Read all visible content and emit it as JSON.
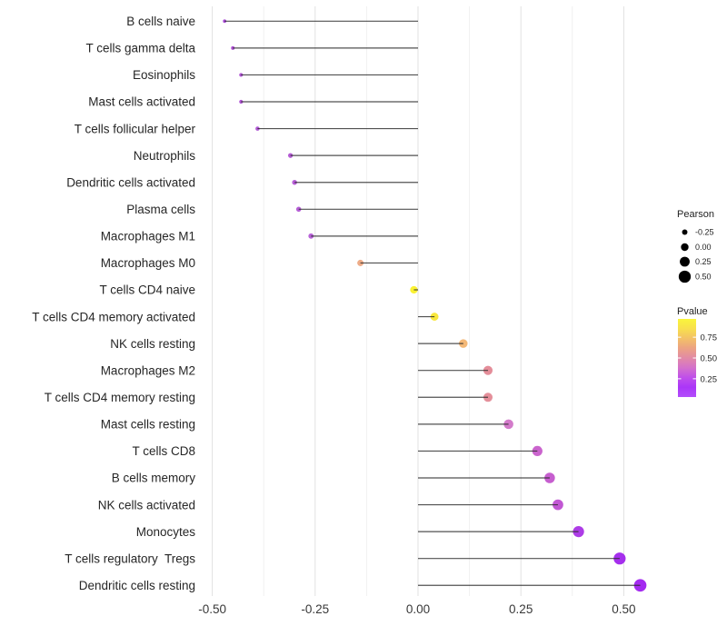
{
  "chart_data": {
    "type": "lollipop",
    "title": "",
    "xlabel": "",
    "ylabel": "",
    "x_tick_values": [
      -0.5,
      -0.25,
      0.0,
      0.25,
      0.5
    ],
    "x_tick_labels": [
      "-0.50",
      "-0.25",
      "0.00",
      "0.25",
      "0.50"
    ],
    "x_range": [
      -0.527,
      0.595
    ],
    "baseline": 0,
    "grid": "vertical-only",
    "rows": [
      {
        "label": "B cells naive",
        "pearson": -0.47,
        "color": "#A139D4"
      },
      {
        "label": "T cells gamma delta",
        "pearson": -0.45,
        "color": "#A841D1"
      },
      {
        "label": "Eosinophils",
        "pearson": -0.43,
        "color": "#A946D0"
      },
      {
        "label": "Mast cells activated",
        "pearson": -0.43,
        "color": "#A946D0"
      },
      {
        "label": "T cells follicular helper",
        "pearson": -0.39,
        "color": "#AB4BD2"
      },
      {
        "label": "Neutrophils",
        "pearson": -0.31,
        "color": "#B04FD2"
      },
      {
        "label": "Dendritic cells activated",
        "pearson": -0.3,
        "color": "#B04FD2"
      },
      {
        "label": "Plasma cells",
        "pearson": -0.29,
        "color": "#B051D3"
      },
      {
        "label": "Macrophages M1",
        "pearson": -0.26,
        "color": "#B256D5"
      },
      {
        "label": "Macrophages M0",
        "pearson": -0.14,
        "color": "#EDA57E"
      },
      {
        "label": "T cells CD4 naive",
        "pearson": -0.01,
        "color": "#FAF021"
      },
      {
        "label": "T cells CD4 memory activated",
        "pearson": 0.04,
        "color": "#F7E52C"
      },
      {
        "label": "NK cells resting",
        "pearson": 0.11,
        "color": "#F2B26B"
      },
      {
        "label": "Macrophages M2",
        "pearson": 0.17,
        "color": "#E28390"
      },
      {
        "label": "T cells CD4 memory resting",
        "pearson": 0.17,
        "color": "#E28591"
      },
      {
        "label": "Mast cells resting",
        "pearson": 0.22,
        "color": "#CF70C5"
      },
      {
        "label": "T cells CD8",
        "pearson": 0.29,
        "color": "#C557C9"
      },
      {
        "label": "B cells memory",
        "pearson": 0.32,
        "color": "#C150CB"
      },
      {
        "label": "NK cells activated",
        "pearson": 0.34,
        "color": "#BC49CF"
      },
      {
        "label": "Monocytes",
        "pearson": 0.39,
        "color": "#A62BE4"
      },
      {
        "label": "T cells regulatory  Tregs",
        "pearson": 0.49,
        "color": "#9D1DEC"
      },
      {
        "label": "Dendritic cells resting",
        "pearson": 0.54,
        "color": "#9C19EF"
      }
    ],
    "segment_color": "#2B2B2B"
  },
  "legends": {
    "pearson": {
      "title": "Pearson",
      "entries": [
        {
          "label": "-0.25",
          "value": -0.25
        },
        {
          "label": "0.00",
          "value": 0.0
        },
        {
          "label": "0.25",
          "value": 0.25
        },
        {
          "label": "0.50",
          "value": 0.5
        }
      ],
      "dot_color": "#000000"
    },
    "pvalue": {
      "title": "Pvalue",
      "tick_labels": [
        "0.75",
        "0.50",
        "0.25"
      ],
      "tick_values": [
        0.75,
        0.5,
        0.25
      ],
      "value_range_top_to_bottom": [
        0.97,
        0.03
      ],
      "gradient_top_to_bottom": [
        "#F9F53B",
        "#F8DF4E",
        "#F3C167",
        "#ECA283",
        "#E28AA6",
        "#D471CB",
        "#BF4FEA",
        "#AB36F8",
        "#B24EFB"
      ]
    }
  }
}
